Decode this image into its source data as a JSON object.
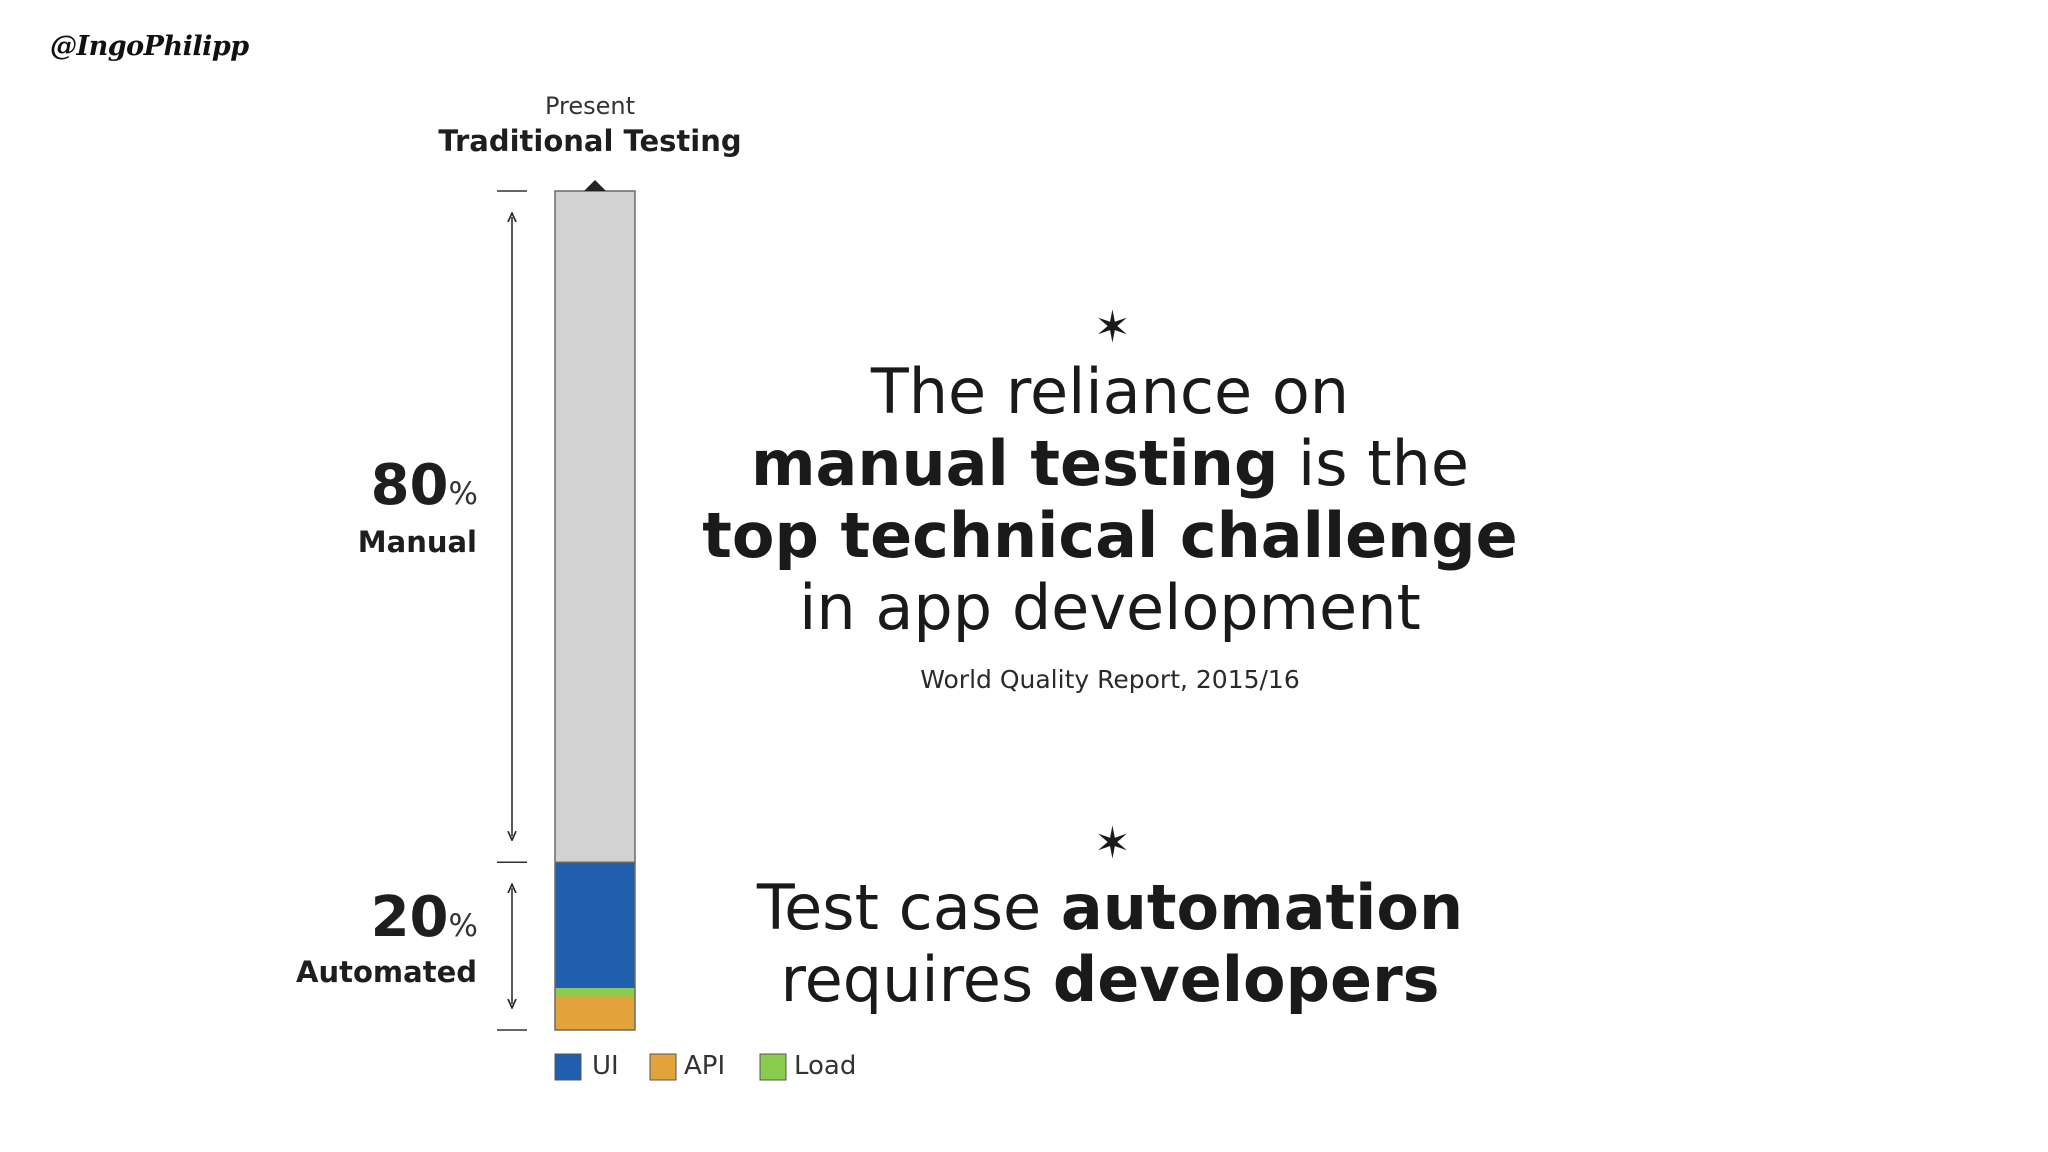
{
  "author_handle": "@IngoPhilipp",
  "chart_data": {
    "type": "bar",
    "stacked": true,
    "subtitle": "Present",
    "title": "Traditional Testing",
    "ylim": [
      0,
      100
    ],
    "series": [
      {
        "name": "API",
        "value": 4,
        "color": "#E2A33A"
      },
      {
        "name": "Load",
        "value": 1,
        "color": "#8ACD4E"
      },
      {
        "name": "UI",
        "value": 15,
        "color": "#1F5FAE"
      },
      {
        "name": "Manual",
        "value": 80,
        "color": "#D2D2D2"
      }
    ],
    "brackets": [
      {
        "value": "80",
        "unit": "%",
        "label": "Manual"
      },
      {
        "value": "20",
        "unit": "%",
        "label": "Automated"
      }
    ],
    "legend": [
      {
        "label": "UI",
        "color": "#1F5FAE"
      },
      {
        "label": "API",
        "color": "#E2A33A"
      },
      {
        "label": "Load",
        "color": "#8ACD4E"
      }
    ]
  },
  "statement1": {
    "line1": "The reliance on",
    "line2_bold": "manual testing",
    "line2_rest": " is the",
    "line3_bold": "top technical challenge",
    "line4": "in app development",
    "source": "World Quality Report, 2015/16"
  },
  "statement2": {
    "line1_plain": "Test case ",
    "line1_bold": "automation",
    "line2_plain": "requires ",
    "line2_bold": "developers"
  },
  "icons": {
    "bullet": "six-pointed-star-icon",
    "bracket_arrow": "double-arrow-icon"
  }
}
